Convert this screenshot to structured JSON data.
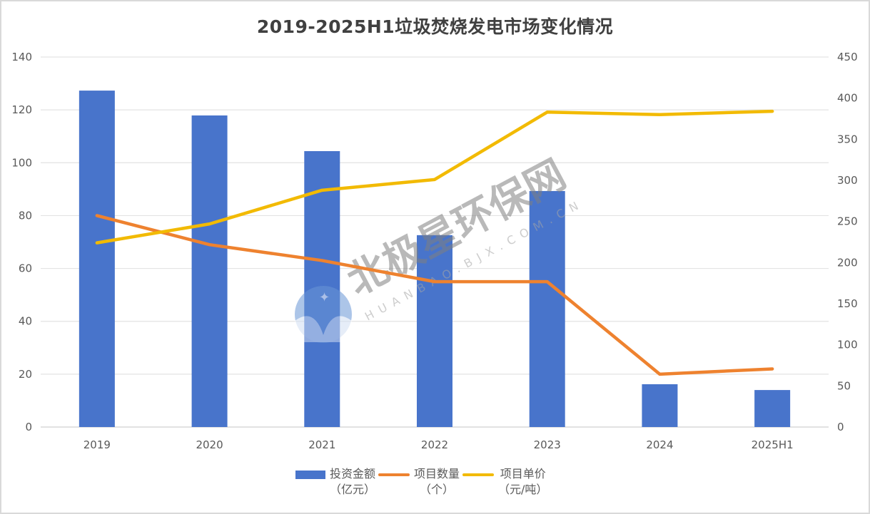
{
  "title": "2019-2025H1垃圾焚烧发电市场变化情况",
  "colors": {
    "investment": "#4874cb",
    "project_count": "#ee822f",
    "unit_price": "#f2ba02",
    "grid": "#e3e3e3",
    "axis_text": "#595959"
  },
  "legend": [
    {
      "name": "投资金额",
      "unit": "（亿元）"
    },
    {
      "name": "项目数量",
      "unit": "（个）"
    },
    {
      "name": "项目单价",
      "unit": "（元/吨）"
    }
  ],
  "watermark": {
    "text": "北极星环保网",
    "url_text": "HUANBAO.BJX.COM.CN"
  },
  "chart_data": {
    "type": "bar+line",
    "title": "2019-2025H1垃圾焚烧发电市场变化情况",
    "categories": [
      "2019",
      "2020",
      "2021",
      "2022",
      "2023",
      "2024",
      "2025H1"
    ],
    "series": [
      {
        "name": "投资金额（亿元）",
        "type": "bar",
        "axis": "left",
        "values": [
          127.3,
          117.9,
          104.4,
          72.6,
          89.3,
          16.2,
          14.0
        ]
      },
      {
        "name": "项目数量（个）",
        "type": "line",
        "axis": "left",
        "values": [
          80,
          69,
          63,
          55,
          55,
          20,
          22
        ]
      },
      {
        "name": "项目单价（元/吨）",
        "type": "line",
        "axis": "right",
        "values": [
          224,
          247,
          288,
          301,
          383,
          380,
          384
        ]
      }
    ],
    "left_axis": {
      "ylim": [
        0,
        140
      ],
      "ticks": [
        "0",
        "20",
        "40",
        "60",
        "80",
        "100",
        "120",
        "140"
      ]
    },
    "right_axis": {
      "ylim": [
        0,
        450
      ],
      "ticks": [
        "0",
        "50",
        "100",
        "150",
        "200",
        "250",
        "300",
        "350",
        "400",
        "450"
      ]
    },
    "xlabel": "",
    "ylabel": "",
    "grid": true,
    "legend_position": "bottom"
  }
}
